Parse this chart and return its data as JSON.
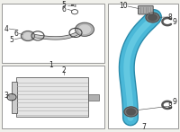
{
  "bg_color": "#f0f0eb",
  "tube_color": "#4ab8d8",
  "tube_dark": "#2a8aaa",
  "tube_light": "#7dd8eb",
  "part_color": "#b0b0b0",
  "line_color": "#404040",
  "label_color": "#222222",
  "label_fontsize": 5.5
}
